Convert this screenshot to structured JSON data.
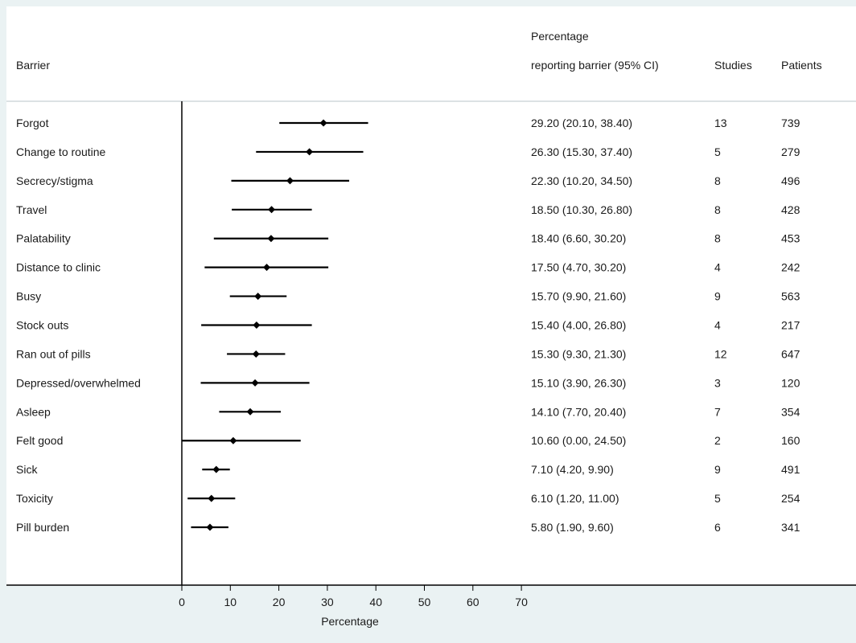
{
  "chart_data": {
    "type": "forest",
    "headers": {
      "barrier": "Barrier",
      "pct_line1": "Percentage",
      "pct_line2": "reporting barrier (95% CI)",
      "studies": "Studies",
      "patients": "Patients"
    },
    "rows": [
      {
        "label": "Forgot",
        "estimate": 29.2,
        "lower": 20.1,
        "upper": 38.4,
        "text": "29.20 (20.10, 38.40)",
        "studies": "13",
        "patients": "739"
      },
      {
        "label": "Change to routine",
        "estimate": 26.3,
        "lower": 15.3,
        "upper": 37.4,
        "text": "26.30 (15.30, 37.40)",
        "studies": "5",
        "patients": "279"
      },
      {
        "label": "Secrecy/stigma",
        "estimate": 22.3,
        "lower": 10.2,
        "upper": 34.5,
        "text": "22.30 (10.20, 34.50)",
        "studies": "8",
        "patients": "496"
      },
      {
        "label": "Travel",
        "estimate": 18.5,
        "lower": 10.3,
        "upper": 26.8,
        "text": "18.50 (10.30, 26.80)",
        "studies": "8",
        "patients": "428"
      },
      {
        "label": "Palatability",
        "estimate": 18.4,
        "lower": 6.6,
        "upper": 30.2,
        "text": "18.40 (6.60, 30.20)",
        "studies": "8",
        "patients": "453"
      },
      {
        "label": "Distance to clinic",
        "estimate": 17.5,
        "lower": 4.7,
        "upper": 30.2,
        "text": "17.50 (4.70, 30.20)",
        "studies": "4",
        "patients": "242"
      },
      {
        "label": "Busy",
        "estimate": 15.7,
        "lower": 9.9,
        "upper": 21.6,
        "text": "15.70 (9.90, 21.60)",
        "studies": "9",
        "patients": "563"
      },
      {
        "label": "Stock outs",
        "estimate": 15.4,
        "lower": 4.0,
        "upper": 26.8,
        "text": "15.40 (4.00, 26.80)",
        "studies": "4",
        "patients": "217"
      },
      {
        "label": "Ran out of pills",
        "estimate": 15.3,
        "lower": 9.3,
        "upper": 21.3,
        "text": "15.30 (9.30, 21.30)",
        "studies": "12",
        "patients": "647"
      },
      {
        "label": "Depressed/overwhelmed",
        "estimate": 15.1,
        "lower": 3.9,
        "upper": 26.3,
        "text": "15.10 (3.90, 26.30)",
        "studies": "3",
        "patients": "120"
      },
      {
        "label": "Asleep",
        "estimate": 14.1,
        "lower": 7.7,
        "upper": 20.4,
        "text": "14.10 (7.70, 20.40)",
        "studies": "7",
        "patients": "354"
      },
      {
        "label": "Felt good",
        "estimate": 10.6,
        "lower": 0.0,
        "upper": 24.5,
        "text": "10.60 (0.00, 24.50)",
        "studies": "2",
        "patients": "160"
      },
      {
        "label": "Sick",
        "estimate": 7.1,
        "lower": 4.2,
        "upper": 9.9,
        "text": "7.10 (4.20, 9.90)",
        "studies": "9",
        "patients": "491"
      },
      {
        "label": "Toxicity",
        "estimate": 6.1,
        "lower": 1.2,
        "upper": 11.0,
        "text": "6.10 (1.20, 11.00)",
        "studies": "5",
        "patients": "254"
      },
      {
        "label": "Pill burden",
        "estimate": 5.8,
        "lower": 1.9,
        "upper": 9.6,
        "text": "5.80 (1.90, 9.60)",
        "studies": "6",
        "patients": "341"
      }
    ],
    "x_ticks": [
      0,
      10,
      20,
      30,
      40,
      50,
      60,
      70
    ],
    "xlim": [
      0,
      70
    ],
    "xlabel": "Percentage",
    "grid": false,
    "colors": {
      "background": "#eaf2f3",
      "panel": "#ffffff",
      "marks": "#000000",
      "header_rule": "#b8c4c8"
    }
  }
}
